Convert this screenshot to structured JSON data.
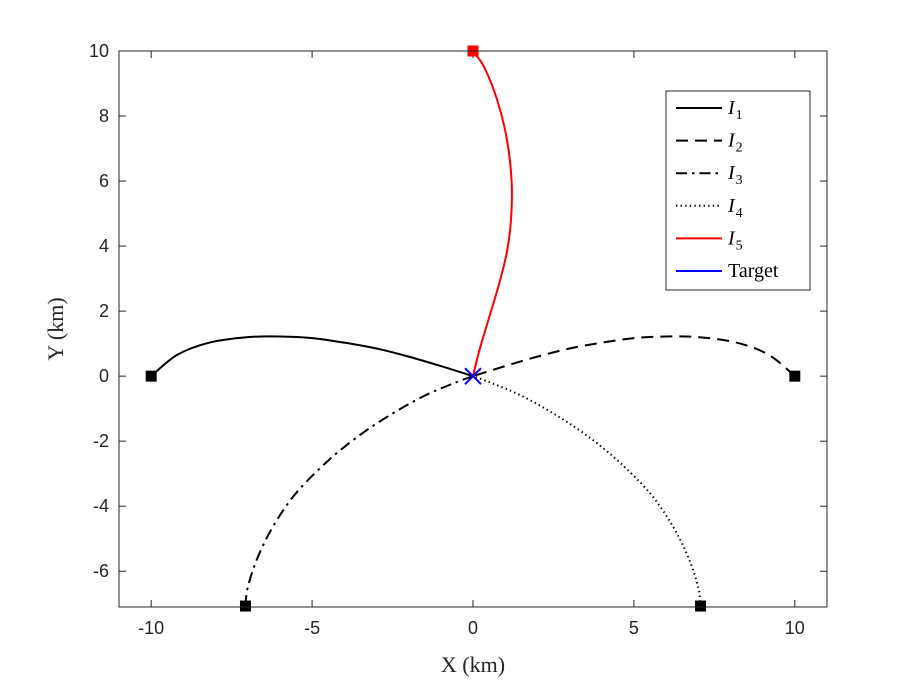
{
  "chart_data": {
    "type": "line",
    "title": "",
    "xlabel": "X (km)",
    "ylabel": "Y (km)",
    "xlim": [
      -11,
      11
    ],
    "ylim": [
      -7.1,
      10
    ],
    "xticks": [
      -10,
      -5,
      0,
      5,
      10
    ],
    "yticks": [
      -6,
      -4,
      -2,
      0,
      2,
      4,
      6,
      8,
      10
    ],
    "xtick_labels": [
      "-10",
      "-5",
      "0",
      "5",
      "10"
    ],
    "ytick_labels": [
      "-6",
      "-4",
      "-2",
      "0",
      "2",
      "4",
      "6",
      "8",
      "10"
    ],
    "grid": false,
    "legend_position": "top-right",
    "series": [
      {
        "name": "I",
        "subscript": "1",
        "style": "solid",
        "color": "#000000",
        "x": [
          -10,
          -9.2,
          -8.2,
          -7,
          -6,
          -5,
          -4,
          -3,
          -2,
          -1,
          0
        ],
        "y": [
          0,
          0.65,
          1.03,
          1.2,
          1.22,
          1.17,
          1.03,
          0.85,
          0.6,
          0.31,
          0
        ],
        "start_marker": {
          "x": -10,
          "y": 0,
          "color": "#000000"
        }
      },
      {
        "name": "I",
        "subscript": "2",
        "style": "dashed",
        "color": "#000000",
        "x": [
          10,
          9.2,
          8.2,
          7,
          6,
          5,
          4,
          3,
          2,
          1,
          0
        ],
        "y": [
          0,
          0.65,
          1.03,
          1.2,
          1.22,
          1.17,
          1.03,
          0.85,
          0.6,
          0.31,
          0
        ],
        "start_marker": {
          "x": 10,
          "y": 0,
          "color": "#000000"
        }
      },
      {
        "name": "I",
        "subscript": "3",
        "style": "dashdot",
        "color": "#000000",
        "x": [
          -7.07,
          -7.0,
          -6.7,
          -6.2,
          -5.5,
          -4.5,
          -3.5,
          -2.5,
          -1.5,
          -0.6,
          0
        ],
        "y": [
          -7.07,
          -6.5,
          -5.6,
          -4.6,
          -3.6,
          -2.6,
          -1.8,
          -1.15,
          -0.6,
          -0.22,
          0
        ],
        "start_marker": {
          "x": -7.07,
          "y": -7.07,
          "color": "#000000"
        }
      },
      {
        "name": "I",
        "subscript": "4",
        "style": "dotted",
        "color": "#000000",
        "x": [
          7.07,
          7.0,
          6.7,
          6.2,
          5.5,
          4.5,
          3.5,
          2.5,
          1.5,
          0.6,
          0
        ],
        "y": [
          -7.07,
          -6.5,
          -5.6,
          -4.6,
          -3.6,
          -2.6,
          -1.8,
          -1.15,
          -0.6,
          -0.22,
          0
        ],
        "start_marker": {
          "x": 7.07,
          "y": -7.07,
          "color": "#000000"
        }
      },
      {
        "name": "I",
        "subscript": "5",
        "style": "solid",
        "color": "#ff0000",
        "x": [
          0,
          0.35,
          0.75,
          1.05,
          1.2,
          1.18,
          1.05,
          0.8,
          0.5,
          0.2,
          0
        ],
        "y": [
          10,
          9.5,
          8.5,
          7.3,
          6.0,
          4.8,
          3.8,
          2.8,
          1.8,
          0.8,
          0
        ],
        "start_marker": {
          "x": 0,
          "y": 10,
          "color": "#ff0000"
        }
      }
    ],
    "target": {
      "name": "Target",
      "x": 0,
      "y": 0,
      "color": "#0000ff",
      "marker": "x"
    }
  }
}
